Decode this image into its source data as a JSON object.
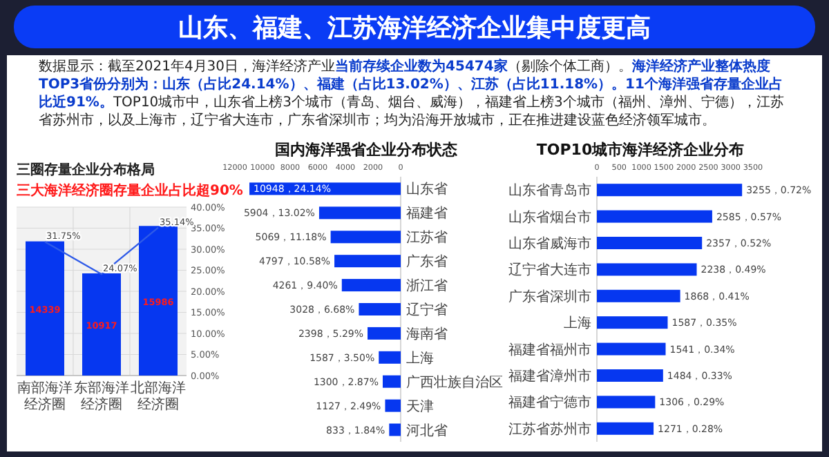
{
  "chart_data": [
    {
      "type": "other",
      "title": "山东、福建、江苏海洋经济企业集中度更高",
      "annotations": [
        "数据显示：截至2021年4月30日，海洋经济产业**当前存续企业数为45474家**（剔除个体工商）。**海洋经济产业整体热度TOP3省份分别为：山东（占比24.14%）、福建（占比13.02%）、江苏（占比11.18%）。11个海洋强省存量企业占比近91%。**TOP10城市中，山东省上榜3个城市（青岛、烟台、威海），福建省上榜3个城市（福州、漳州、宁德），江苏省苏州市，以及上海市，辽宁省大连市，广东省深圳市；均为沿海开放城市，正在推进建设蓝色经济领军城市。"
      ]
    },
    {
      "type": "bar",
      "title": "三圈存量企业分布格局",
      "subtitle": "三大海洋经济圈存量企业占比超90%",
      "categories": [
        "南部海洋经济圈",
        "东部海洋经济圈",
        "北部海洋经济圈"
      ],
      "series": [
        {
          "type": "bar",
          "color": "#0637f0",
          "values": [
            14339,
            10917,
            15986
          ],
          "value_labels": [
            "14339",
            "10917",
            "15986"
          ]
        },
        {
          "type": "line",
          "axis": "y2",
          "color": "#2f5be8",
          "values": [
            31.75,
            24.07,
            35.14
          ],
          "value_labels": [
            "31.75%",
            "24.07%",
            "35.14%"
          ]
        }
      ],
      "ylim": [
        0,
        18000
      ],
      "y2lim": [
        0,
        40
      ],
      "y2ticks": [
        {
          "value": 0,
          "label": "0.00%"
        },
        {
          "value": 5,
          "label": "5.00%"
        },
        {
          "value": 10,
          "label": "10.00%"
        },
        {
          "value": 15,
          "label": "15.00%"
        },
        {
          "value": 20,
          "label": "20.00%"
        },
        {
          "value": 25,
          "label": "25.00%"
        },
        {
          "value": 30,
          "label": "30.00%"
        },
        {
          "value": 35,
          "label": "35.00%"
        },
        {
          "value": 40,
          "label": "40.00%"
        }
      ],
      "grid": true
    },
    {
      "type": "bar",
      "orientation": "horizontal",
      "title": "国内海洋强省企业分布状态",
      "categories": [
        "山东省",
        "福建省",
        "江苏省",
        "广东省",
        "浙江省",
        "辽宁省",
        "海南省",
        "上海",
        "广西壮族自治区",
        "天津",
        "河北省"
      ],
      "values": [
        10948,
        5904,
        5069,
        4797,
        4261,
        3028,
        2398,
        1587,
        1300,
        1127,
        833
      ],
      "color": "#0637f0",
      "value_labels": [
        "10948，24.14%",
        "5904，13.02%",
        "5069，11.18%",
        "4797，10.58%",
        "4261，9.40%",
        "3028，6.68%",
        "2398，5.29%",
        "1587，3.50%",
        "1300，2.87%",
        "1127，2.49%",
        "833，1.84%"
      ],
      "xlim": [
        12000,
        0
      ],
      "xticks": [
        12000,
        10000,
        8000,
        6000,
        4000,
        2000,
        0
      ]
    },
    {
      "type": "bar",
      "orientation": "horizontal",
      "title": "TOP10城市海洋经济企业分布",
      "categories": [
        "山东省青岛市",
        "山东省烟台市",
        "山东省威海市",
        "辽宁省大连市",
        "广东省深圳市",
        "上海",
        "福建省福州市",
        "福建省漳州市",
        "福建省宁德市",
        "江苏省苏州市"
      ],
      "values": [
        3255,
        2585,
        2357,
        2238,
        1868,
        1587,
        1541,
        1484,
        1306,
        1271
      ],
      "color": "#0637f0",
      "value_labels": [
        "3255，0.72%",
        "2585，0.57%",
        "2357，0.52%",
        "2238，0.49%",
        "1868，0.41%",
        "1587，0.35%",
        "1541，0.34%",
        "1484，0.33%",
        "1306，0.29%",
        "1271，0.28%"
      ],
      "xlim": [
        0,
        3500
      ],
      "xticks": [
        0,
        500,
        1000,
        1500,
        2000,
        2500,
        3000,
        3500
      ]
    }
  ]
}
